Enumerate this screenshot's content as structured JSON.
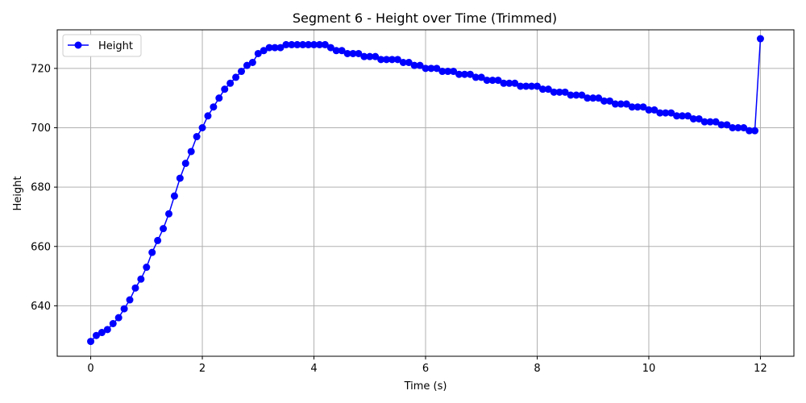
{
  "chart_data": {
    "type": "line",
    "title": "Segment 6 - Height over Time (Trimmed)",
    "xlabel": "Time (s)",
    "ylabel": "Height",
    "xlim": [
      -0.6,
      12.6
    ],
    "ylim": [
      623,
      733
    ],
    "xticks": [
      0,
      2,
      4,
      6,
      8,
      10,
      12
    ],
    "yticks": [
      640,
      660,
      680,
      700,
      720
    ],
    "grid": true,
    "legend": "top-left",
    "color": "#0000ff",
    "marker": "circle",
    "series": [
      {
        "name": "Height",
        "x": [
          0.0,
          0.1,
          0.2,
          0.3,
          0.4,
          0.5,
          0.6,
          0.7,
          0.8,
          0.9,
          1.0,
          1.1,
          1.2,
          1.3,
          1.4,
          1.5,
          1.6,
          1.7,
          1.8,
          1.9,
          2.0,
          2.1,
          2.2,
          2.3,
          2.4,
          2.5,
          2.6,
          2.7,
          2.8,
          2.9,
          3.0,
          3.1,
          3.2,
          3.3,
          3.4,
          3.5,
          3.6,
          3.7,
          3.8,
          3.9,
          4.0,
          4.1,
          4.2,
          4.3,
          4.4,
          4.5,
          4.6,
          4.7,
          4.8,
          4.9,
          5.0,
          5.1,
          5.2,
          5.3,
          5.4,
          5.5,
          5.6,
          5.7,
          5.8,
          5.9,
          6.0,
          6.1,
          6.2,
          6.3,
          6.4,
          6.5,
          6.6,
          6.7,
          6.8,
          6.9,
          7.0,
          7.1,
          7.2,
          7.3,
          7.4,
          7.5,
          7.6,
          7.7,
          7.8,
          7.9,
          8.0,
          8.1,
          8.2,
          8.3,
          8.4,
          8.5,
          8.6,
          8.7,
          8.8,
          8.9,
          9.0,
          9.1,
          9.2,
          9.3,
          9.4,
          9.5,
          9.6,
          9.7,
          9.8,
          9.9,
          10.0,
          10.1,
          10.2,
          10.3,
          10.4,
          10.5,
          10.6,
          10.7,
          10.8,
          10.9,
          11.0,
          11.1,
          11.2,
          11.3,
          11.4,
          11.5,
          11.6,
          11.7,
          11.8,
          11.9,
          12.0
        ],
        "values": [
          628,
          630,
          631,
          632,
          634,
          636,
          639,
          642,
          646,
          649,
          653,
          658,
          662,
          666,
          671,
          677,
          683,
          688,
          692,
          697,
          700,
          704,
          707,
          710,
          713,
          715,
          717,
          719,
          721,
          722,
          725,
          726,
          727,
          727,
          727,
          728,
          728,
          728,
          728,
          728,
          728,
          728,
          728,
          727,
          726,
          726,
          725,
          725,
          725,
          724,
          724,
          724,
          723,
          723,
          723,
          723,
          722,
          722,
          721,
          721,
          720,
          720,
          720,
          719,
          719,
          719,
          718,
          718,
          718,
          717,
          717,
          716,
          716,
          716,
          715,
          715,
          715,
          714,
          714,
          714,
          714,
          713,
          713,
          712,
          712,
          712,
          711,
          711,
          711,
          710,
          710,
          710,
          709,
          709,
          708,
          708,
          708,
          707,
          707,
          707,
          706,
          706,
          705,
          705,
          705,
          704,
          704,
          704,
          703,
          703,
          702,
          702,
          702,
          701,
          701,
          700,
          700,
          700,
          699,
          699,
          730
        ]
      }
    ]
  }
}
